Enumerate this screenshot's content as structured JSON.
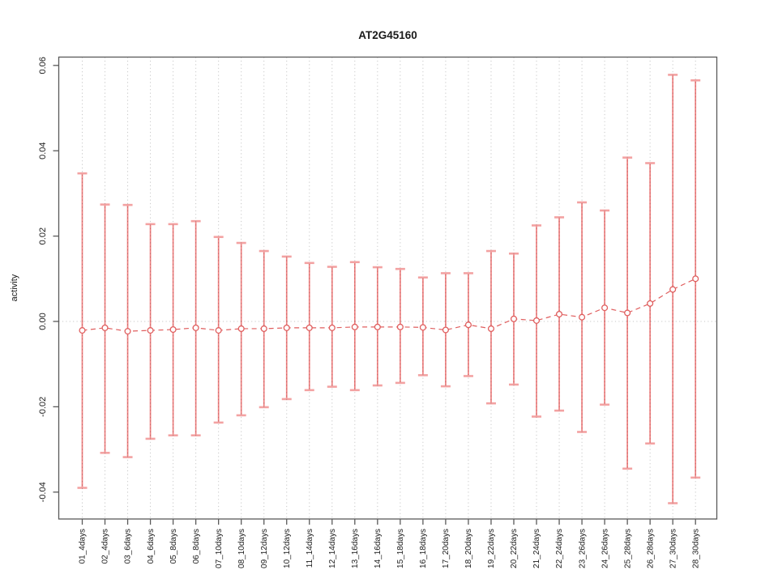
{
  "chart_data": {
    "type": "scatter",
    "title": "AT2G45160",
    "xlabel": "",
    "ylabel": "activity",
    "grid": "vertical-dotted",
    "zero_reference_line": true,
    "legend": "none",
    "ylim": [
      -0.0463,
      0.062
    ],
    "yticks": [
      {
        "value": -0.04,
        "label": "-0.04"
      },
      {
        "value": -0.02,
        "label": "-0.02"
      },
      {
        "value": 0.0,
        "label": "0.00"
      },
      {
        "value": 0.02,
        "label": "0.02"
      },
      {
        "value": 0.04,
        "label": "0.04"
      },
      {
        "value": 0.06,
        "label": "0.06"
      }
    ],
    "categories": [
      "01_4days",
      "02_4days",
      "03_6days",
      "04_6days",
      "05_8days",
      "06_8days",
      "07_10days",
      "08_10days",
      "09_12days",
      "10_12days",
      "11_14days",
      "12_14days",
      "13_16days",
      "14_16days",
      "15_18days",
      "16_18days",
      "17_20days",
      "18_20days",
      "19_22days",
      "20_22days",
      "21_24days",
      "22_24days",
      "23_26days",
      "24_26days",
      "25_28days",
      "26_28days",
      "27_30days",
      "28_30days"
    ],
    "series": [
      {
        "name": "activity",
        "values": [
          -0.0021,
          -0.0015,
          -0.0023,
          -0.0021,
          -0.0019,
          -0.0015,
          -0.0021,
          -0.0017,
          -0.0017,
          -0.0015,
          -0.0015,
          -0.0015,
          -0.0013,
          -0.0013,
          -0.0013,
          -0.0014,
          -0.002,
          -0.0008,
          -0.0017,
          0.0006,
          0.0002,
          0.0017,
          0.001,
          0.0032,
          0.002,
          0.0042,
          0.0075,
          0.01
        ],
        "error_low": [
          -0.039,
          -0.0308,
          -0.0318,
          -0.0275,
          -0.0267,
          -0.0267,
          -0.0237,
          -0.022,
          -0.0201,
          -0.0182,
          -0.0161,
          -0.0153,
          -0.0161,
          -0.015,
          -0.0144,
          -0.0126,
          -0.0152,
          -0.0128,
          -0.0192,
          -0.0148,
          -0.0223,
          -0.0209,
          -0.0259,
          -0.0195,
          -0.0345,
          -0.0286,
          -0.0426,
          -0.0366
        ],
        "error_high": [
          0.0347,
          0.0274,
          0.0273,
          0.0228,
          0.0228,
          0.0235,
          0.0198,
          0.0184,
          0.0165,
          0.0152,
          0.0137,
          0.0128,
          0.0139,
          0.0127,
          0.0123,
          0.0103,
          0.0113,
          0.0113,
          0.0165,
          0.0159,
          0.0225,
          0.0244,
          0.0279,
          0.026,
          0.0384,
          0.0371,
          0.0578,
          0.0565
        ]
      }
    ],
    "colors": {
      "error_bar": "#ef7f7f",
      "error_cap": "#f3a2a2",
      "point_stroke": "#e05f5f",
      "connector": "#e05f5f",
      "grid": "#c7c7c7",
      "box": "#5a5a5a",
      "text": "#1a1a1a"
    },
    "marker": "open-circle",
    "connector_style": "dashed"
  }
}
